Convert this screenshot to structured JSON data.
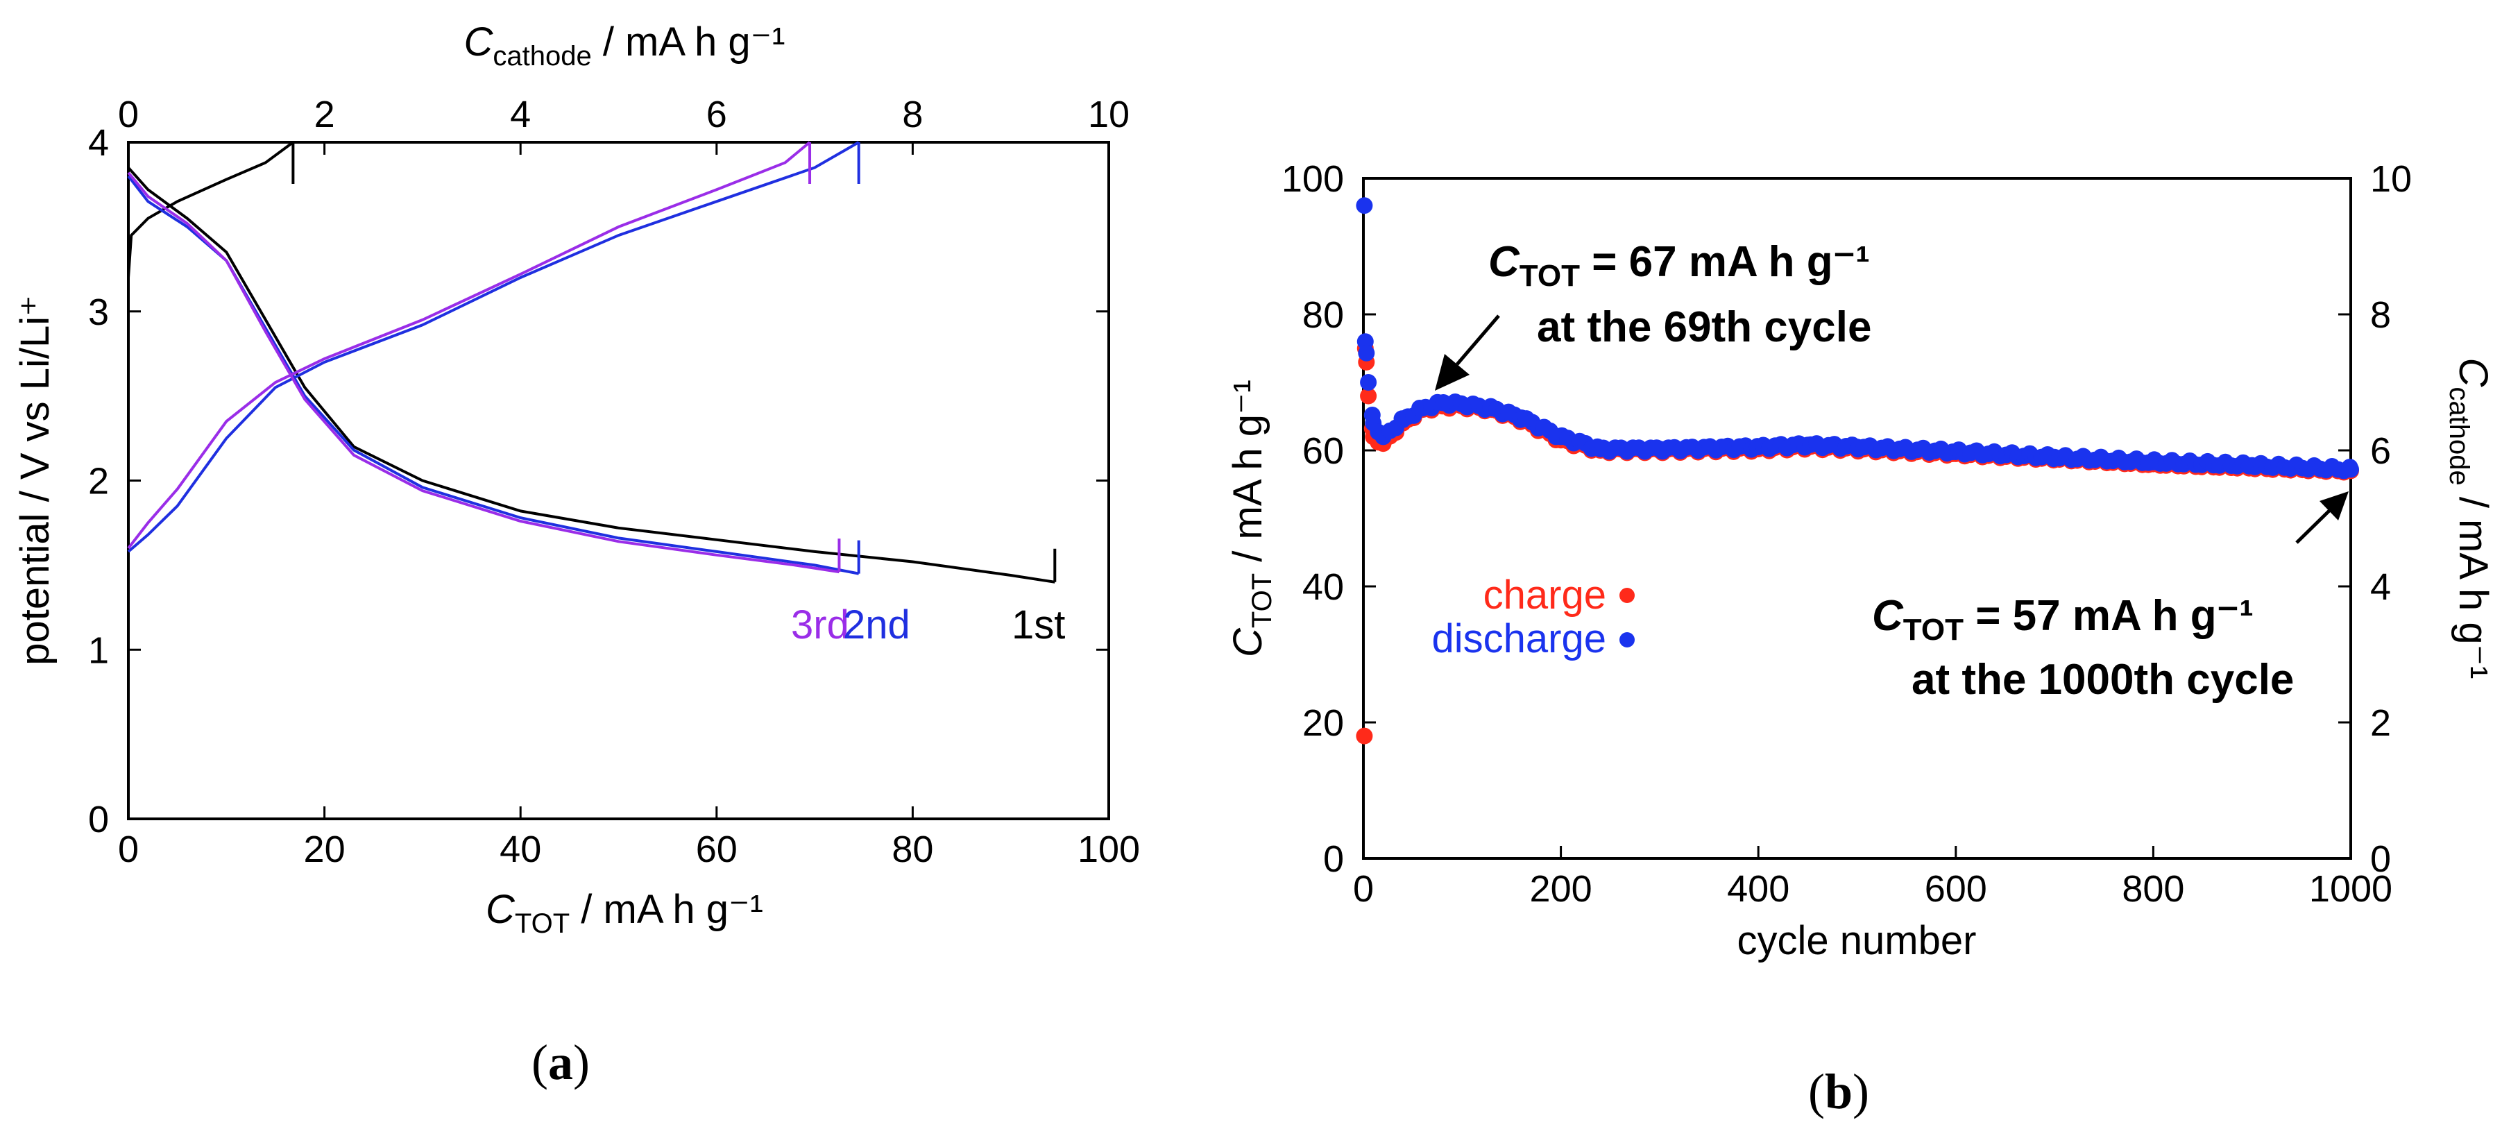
{
  "chart_data": [
    {
      "panel": "a",
      "type": "line",
      "x_bottom": {
        "label_main": "C",
        "label_sub": "TOT",
        "label_rest": " / mA h g⁻¹",
        "range": [
          0,
          100
        ],
        "ticks": [
          0,
          20,
          40,
          60,
          80,
          100
        ]
      },
      "x_top": {
        "label_main": "C",
        "label_sub": "cathode",
        "label_rest": " / mA h g⁻¹",
        "range": [
          0,
          10
        ],
        "ticks": [
          0,
          2,
          4,
          6,
          8,
          10
        ]
      },
      "y": {
        "label": "potential / V vs Li/Li⁺",
        "range": [
          0,
          4
        ],
        "ticks": [
          0,
          1,
          2,
          3,
          4
        ]
      },
      "grid": false,
      "series": [
        {
          "name": "1st",
          "color": "#000000",
          "charge": [
            [
              0,
              3.2
            ],
            [
              0.3,
              3.45
            ],
            [
              2,
              3.55
            ],
            [
              5,
              3.65
            ],
            [
              10,
              3.78
            ],
            [
              14,
              3.88
            ],
            [
              16.8,
              4.0
            ]
          ],
          "discharge": [
            [
              0,
              3.85
            ],
            [
              2,
              3.72
            ],
            [
              6,
              3.55
            ],
            [
              10,
              3.35
            ],
            [
              14,
              2.95
            ],
            [
              18,
              2.55
            ],
            [
              23,
              2.2
            ],
            [
              30,
              2.0
            ],
            [
              40,
              1.82
            ],
            [
              50,
              1.72
            ],
            [
              60,
              1.65
            ],
            [
              70,
              1.58
            ],
            [
              80,
              1.52
            ],
            [
              90,
              1.44
            ],
            [
              94.5,
              1.4
            ]
          ]
        },
        {
          "name": "2nd",
          "color": "#1f2fe0",
          "charge": [
            [
              0,
              1.58
            ],
            [
              2,
              1.68
            ],
            [
              5,
              1.85
            ],
            [
              10,
              2.25
            ],
            [
              15,
              2.55
            ],
            [
              20,
              2.7
            ],
            [
              30,
              2.92
            ],
            [
              40,
              3.2
            ],
            [
              50,
              3.45
            ],
            [
              60,
              3.65
            ],
            [
              70,
              3.85
            ],
            [
              74.5,
              4.0
            ]
          ],
          "discharge": [
            [
              0,
              3.8
            ],
            [
              2,
              3.65
            ],
            [
              6,
              3.5
            ],
            [
              10,
              3.3
            ],
            [
              14,
              2.9
            ],
            [
              18,
              2.5
            ],
            [
              23,
              2.18
            ],
            [
              30,
              1.96
            ],
            [
              40,
              1.78
            ],
            [
              50,
              1.66
            ],
            [
              60,
              1.58
            ],
            [
              70,
              1.5
            ],
            [
              74.5,
              1.45
            ]
          ]
        },
        {
          "name": "3rd",
          "color": "#9a2de8",
          "charge": [
            [
              0,
              1.6
            ],
            [
              2,
              1.75
            ],
            [
              5,
              1.95
            ],
            [
              10,
              2.35
            ],
            [
              15,
              2.58
            ],
            [
              20,
              2.72
            ],
            [
              30,
              2.95
            ],
            [
              40,
              3.22
            ],
            [
              50,
              3.5
            ],
            [
              60,
              3.72
            ],
            [
              67,
              3.88
            ],
            [
              69.5,
              4.0
            ]
          ],
          "discharge": [
            [
              0,
              3.82
            ],
            [
              2,
              3.68
            ],
            [
              6,
              3.52
            ],
            [
              10,
              3.3
            ],
            [
              14,
              2.88
            ],
            [
              18,
              2.48
            ],
            [
              23,
              2.15
            ],
            [
              30,
              1.94
            ],
            [
              40,
              1.76
            ],
            [
              50,
              1.64
            ],
            [
              60,
              1.56
            ],
            [
              68,
              1.5
            ],
            [
              72.5,
              1.46
            ]
          ]
        }
      ]
    },
    {
      "panel": "b",
      "type": "scatter",
      "x": {
        "label": "cycle number",
        "range": [
          0,
          1000
        ],
        "ticks": [
          0,
          200,
          400,
          600,
          800,
          1000
        ]
      },
      "y_left": {
        "label_main": "C",
        "label_sub": "TOT",
        "label_rest": " / mA h g⁻¹",
        "range": [
          0,
          100
        ],
        "ticks": [
          0,
          20,
          40,
          60,
          80,
          100
        ]
      },
      "y_right": {
        "label_main": "C",
        "label_sub": "cathode",
        "label_rest": " / mA h g⁻¹",
        "range": [
          0,
          10
        ],
        "ticks": [
          0,
          2,
          4,
          6,
          8,
          10
        ]
      },
      "grid": false,
      "legend": "center-left",
      "series": [
        {
          "name": "charge",
          "color": "#ff2a1a",
          "points": [
            [
              1,
              18
            ],
            [
              2,
              75
            ],
            [
              5,
              68
            ],
            [
              10,
              62
            ],
            [
              20,
              61
            ],
            [
              40,
              64
            ],
            [
              60,
              66
            ],
            [
              80,
              66.5
            ],
            [
              100,
              66.5
            ],
            [
              130,
              66
            ],
            [
              160,
              64.5
            ],
            [
              200,
              61.5
            ],
            [
              240,
              60
            ],
            [
              300,
              60
            ],
            [
              400,
              60.2
            ],
            [
              450,
              60.5
            ],
            [
              500,
              60.2
            ],
            [
              600,
              59.5
            ],
            [
              700,
              58.8
            ],
            [
              800,
              58
            ],
            [
              900,
              57.5
            ],
            [
              1000,
              57
            ]
          ]
        },
        {
          "name": "discharge",
          "color": "#1a33ee",
          "points": [
            [
              1,
              96
            ],
            [
              2,
              76
            ],
            [
              5,
              70
            ],
            [
              10,
              64
            ],
            [
              20,
              62
            ],
            [
              40,
              64.5
            ],
            [
              60,
              66.2
            ],
            [
              80,
              67
            ],
            [
              100,
              66.8
            ],
            [
              130,
              66.2
            ],
            [
              160,
              64.8
            ],
            [
              200,
              62
            ],
            [
              240,
              60.2
            ],
            [
              300,
              60.2
            ],
            [
              400,
              60.5
            ],
            [
              450,
              60.8
            ],
            [
              500,
              60.5
            ],
            [
              600,
              59.8
            ],
            [
              700,
              59
            ],
            [
              800,
              58.3
            ],
            [
              900,
              57.8
            ],
            [
              1000,
              57.2
            ]
          ]
        }
      ],
      "annotations": [
        {
          "main": "C",
          "sub": "TOT",
          "rest": " = 67 mA h g⁻¹",
          "line2": "at the 69th cycle",
          "arrow_to": [
            69,
            67
          ]
        },
        {
          "main": "C",
          "sub": "TOT",
          "rest": " = 57 mA h g⁻¹",
          "line2": "at the 1000th cycle",
          "arrow_to": [
            1000,
            57
          ]
        }
      ]
    }
  ],
  "captions": {
    "a": {
      "open": "(",
      "letter": "a",
      "close": ")"
    },
    "b": {
      "open": "(",
      "letter": "b",
      "close": ")"
    }
  }
}
